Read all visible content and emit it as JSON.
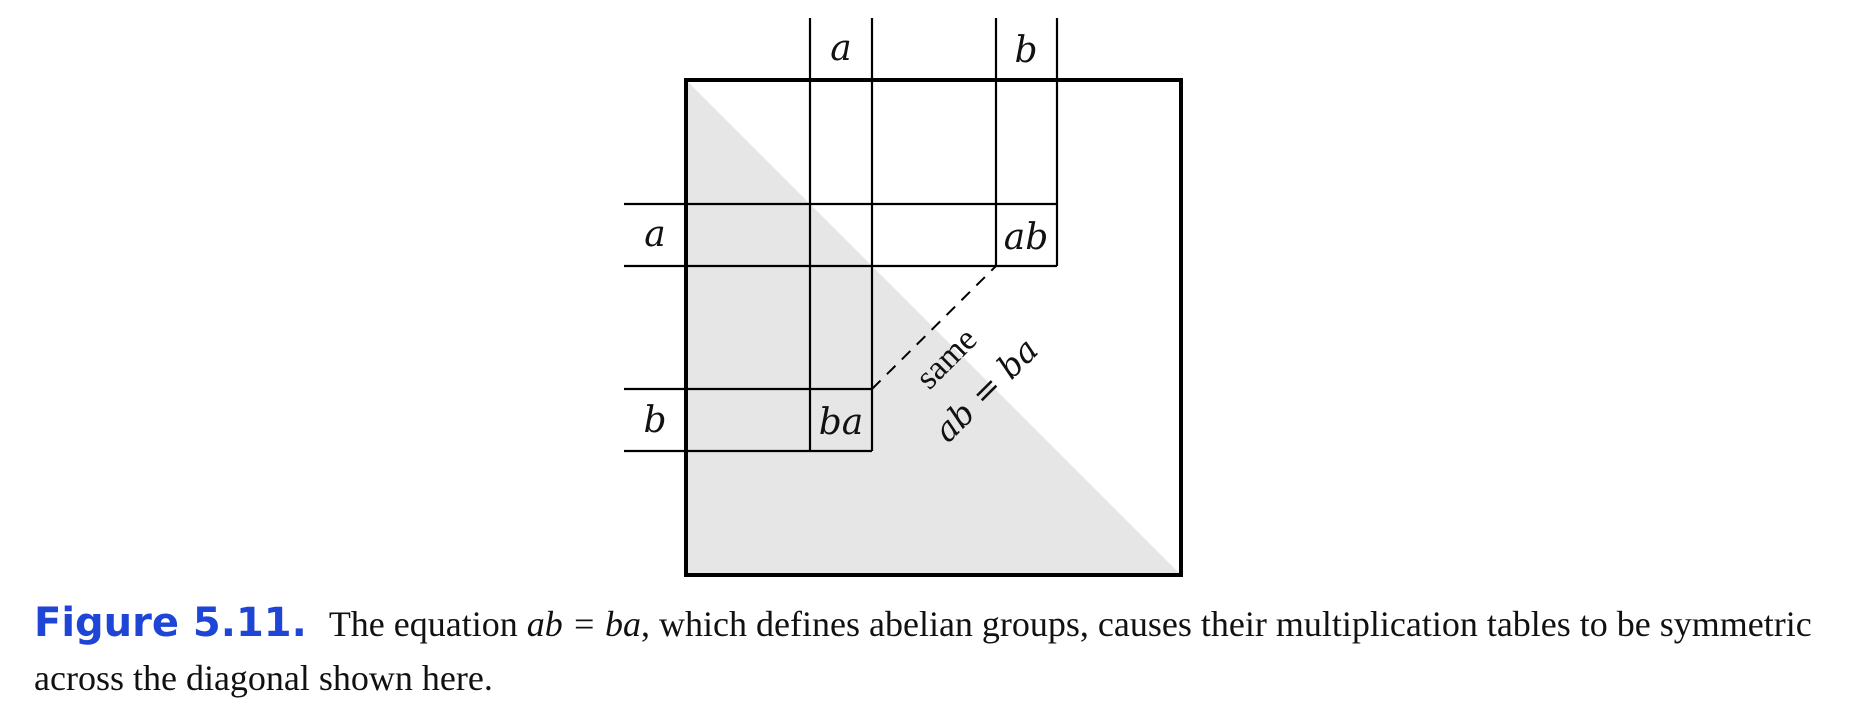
{
  "diagram": {
    "column_headers": [
      "a",
      "b"
    ],
    "row_headers": [
      "a",
      "b"
    ],
    "cells": {
      "upper": "ab",
      "lower": "ba"
    },
    "connector_note": "same",
    "equation_note": "ab = ba"
  },
  "caption": {
    "label": "Figure 5.11.",
    "text_before": "The equation",
    "equation": "ab = ba",
    "text_after": ", which defines abelian groups, causes their multiplication tables to be symmetric across the diagonal shown here."
  },
  "colors": {
    "shade": "#e6e6e6",
    "lines": "#000000",
    "label_blue": "#1f45d6"
  }
}
